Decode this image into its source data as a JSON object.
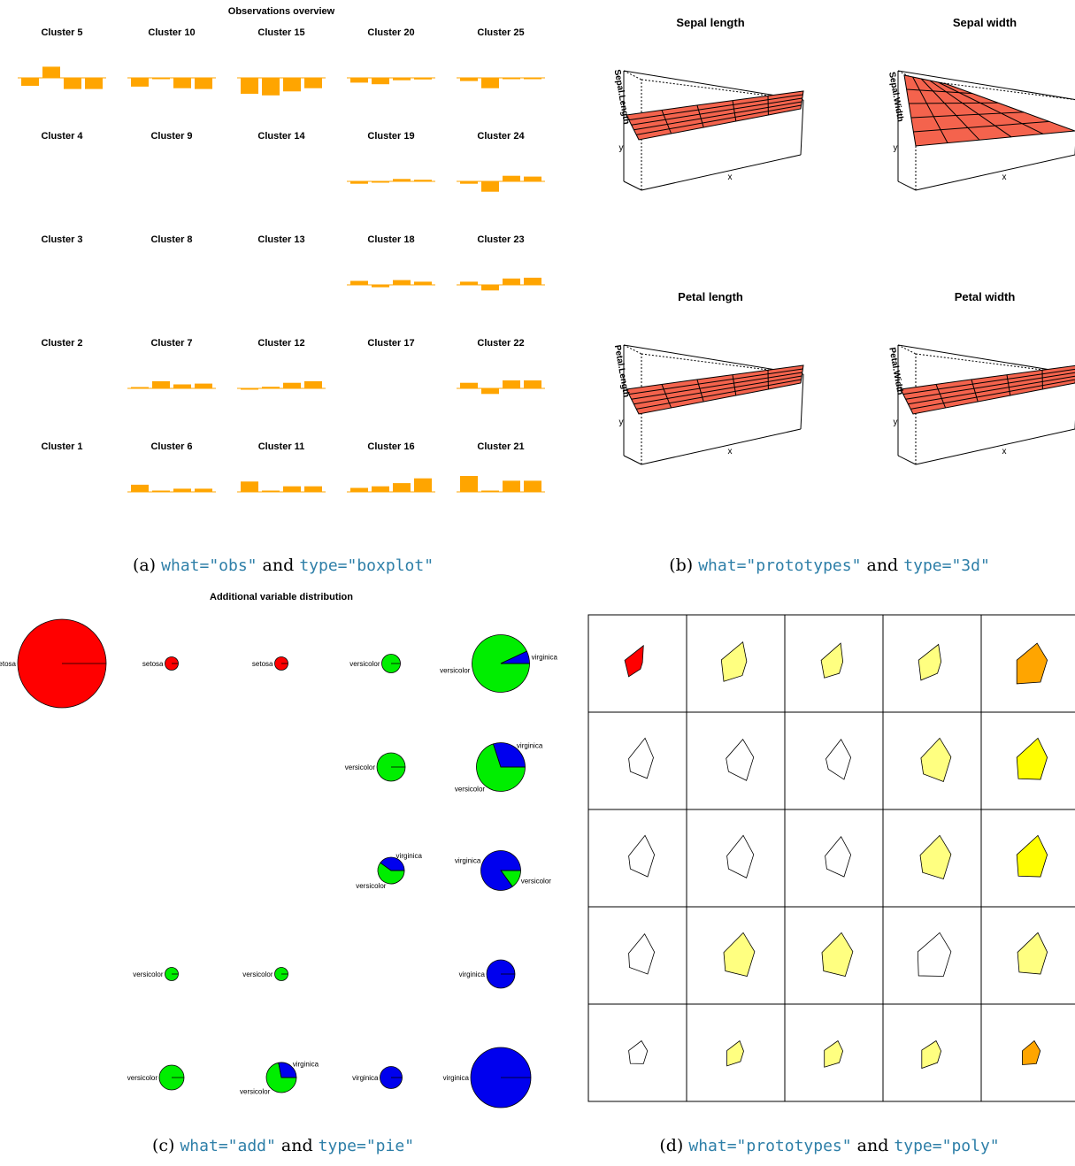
{
  "panel_a": {
    "title": "Observations overview",
    "caption": {
      "prefix": "(a) ",
      "what": "what=\"obs\"",
      "and": " and ",
      "type": "type=\"boxplot\""
    },
    "color": "#ffa500",
    "rows": [
      [
        "Cluster 5",
        "Cluster 10",
        "Cluster 15",
        "Cluster 20",
        "Cluster 25"
      ],
      [
        "Cluster 4",
        "Cluster 9",
        "Cluster 14",
        "Cluster 19",
        "Cluster 24"
      ],
      [
        "Cluster 3",
        "Cluster 8",
        "Cluster 13",
        "Cluster 18",
        "Cluster 23"
      ],
      [
        "Cluster 2",
        "Cluster 7",
        "Cluster 12",
        "Cluster 17",
        "Cluster 22"
      ],
      [
        "Cluster 1",
        "Cluster 6",
        "Cluster 11",
        "Cluster 16",
        "Cluster 21"
      ]
    ]
  },
  "panel_b": {
    "caption": {
      "prefix": "(b) ",
      "what": "what=\"prototypes\"",
      "and": " and ",
      "type": "type=\"3d\""
    },
    "surface_color": "#f4634d",
    "plots": [
      {
        "title": "Sepal length",
        "zlabel": "Sepal.Length",
        "xlabel": "x",
        "ylabel": "y"
      },
      {
        "title": "Sepal width",
        "zlabel": "Sepal.Width",
        "xlabel": "x",
        "ylabel": "y"
      },
      {
        "title": "Petal length",
        "zlabel": "Petal.Length",
        "xlabel": "x",
        "ylabel": "y"
      },
      {
        "title": "Petal width",
        "zlabel": "Petal.Width",
        "xlabel": "x",
        "ylabel": "y"
      }
    ]
  },
  "panel_c": {
    "title": "Additional variable distribution",
    "caption": {
      "prefix": "(c) ",
      "what": "what=\"add\"",
      "and": " and ",
      "type": "type=\"pie\""
    },
    "colors": {
      "setosa": "#ff0000",
      "versicolor": "#00ee00",
      "virginica": "#0000ee"
    }
  },
  "panel_d": {
    "caption": {
      "prefix": "(d) ",
      "what": "what=\"prototypes\"",
      "and": " and ",
      "type": "type=\"poly\""
    },
    "colors": {
      "red": "#ff0000",
      "light_yellow": "#ffff80",
      "yellow": "#ffff00",
      "orange": "#ffa500"
    }
  },
  "chart_data": [
    {
      "type": "bar",
      "title": "Observations overview",
      "grid": [
        [
          "Cluster 5",
          "Cluster 10",
          "Cluster 15",
          "Cluster 20",
          "Cluster 25"
        ],
        [
          "Cluster 4",
          "Cluster 9",
          "Cluster 14",
          "Cluster 19",
          "Cluster 24"
        ],
        [
          "Cluster 3",
          "Cluster 8",
          "Cluster 13",
          "Cluster 18",
          "Cluster 23"
        ],
        [
          "Cluster 2",
          "Cluster 7",
          "Cluster 12",
          "Cluster 17",
          "Cluster 22"
        ],
        [
          "Cluster 1",
          "Cluster 6",
          "Cluster 11",
          "Cluster 16",
          "Cluster 21"
        ]
      ],
      "series": [
        {
          "cluster": "Cluster 5",
          "values": [
            -0.5,
            0.7,
            -0.7,
            -0.7
          ]
        },
        {
          "cluster": "Cluster 10",
          "values": [
            -0.55,
            -0.05,
            -0.65,
            -0.7
          ]
        },
        {
          "cluster": "Cluster 15",
          "values": [
            -1.0,
            -1.1,
            -0.85,
            -0.65
          ]
        },
        {
          "cluster": "Cluster 20",
          "values": [
            -0.3,
            -0.4,
            -0.15,
            -0.1
          ]
        },
        {
          "cluster": "Cluster 25",
          "values": [
            -0.2,
            -0.65,
            -0.05,
            -0.05
          ]
        },
        {
          "cluster": "Cluster 19",
          "values": [
            -0.15,
            -0.05,
            0.15,
            0.1
          ]
        },
        {
          "cluster": "Cluster 24",
          "values": [
            -0.15,
            -0.65,
            0.35,
            0.3
          ]
        },
        {
          "cluster": "Cluster 18",
          "values": [
            0.25,
            -0.15,
            0.3,
            0.2
          ]
        },
        {
          "cluster": "Cluster 23",
          "values": [
            0.2,
            -0.35,
            0.4,
            0.45
          ]
        },
        {
          "cluster": "Cluster 7",
          "values": [
            0.05,
            0.45,
            0.25,
            0.3
          ]
        },
        {
          "cluster": "Cluster 12",
          "values": [
            -0.05,
            0.1,
            0.35,
            0.45
          ]
        },
        {
          "cluster": "Cluster 22",
          "values": [
            0.35,
            -0.35,
            0.5,
            0.5
          ]
        },
        {
          "cluster": "Cluster 6",
          "values": [
            0.45,
            0.05,
            0.2,
            0.2
          ]
        },
        {
          "cluster": "Cluster 11",
          "values": [
            0.65,
            0.05,
            0.35,
            0.35
          ]
        },
        {
          "cluster": "Cluster 16",
          "values": [
            0.25,
            0.35,
            0.55,
            0.85
          ]
        },
        {
          "cluster": "Cluster 21",
          "values": [
            1.0,
            0.05,
            0.7,
            0.7
          ]
        }
      ]
    },
    {
      "type": "surface",
      "plots": [
        "Sepal length",
        "Sepal width",
        "Petal length",
        "Petal width"
      ]
    },
    {
      "type": "pie",
      "title": "Additional variable distribution",
      "pies": [
        {
          "row": 1,
          "col": 1,
          "size": 1.0,
          "slices": [
            {
              "label": "setosa",
              "value": 1.0
            }
          ]
        },
        {
          "row": 1,
          "col": 2,
          "size": 0.15,
          "slices": [
            {
              "label": "setosa",
              "value": 1.0
            }
          ]
        },
        {
          "row": 1,
          "col": 3,
          "size": 0.15,
          "slices": [
            {
              "label": "setosa",
              "value": 1.0
            }
          ]
        },
        {
          "row": 1,
          "col": 4,
          "size": 0.21,
          "slices": [
            {
              "label": "versicolor",
              "value": 1.0
            }
          ]
        },
        {
          "row": 1,
          "col": 5,
          "size": 0.65,
          "slices": [
            {
              "label": "versicolor",
              "value": 0.93
            },
            {
              "label": "virginica",
              "value": 0.07
            }
          ]
        },
        {
          "row": 2,
          "col": 4,
          "size": 0.32,
          "slices": [
            {
              "label": "versicolor",
              "value": 1.0
            }
          ]
        },
        {
          "row": 2,
          "col": 5,
          "size": 0.55,
          "slices": [
            {
              "label": "versicolor",
              "value": 0.7
            },
            {
              "label": "virginica",
              "value": 0.3
            }
          ]
        },
        {
          "row": 3,
          "col": 4,
          "size": 0.3,
          "slices": [
            {
              "label": "versicolor",
              "value": 0.6
            },
            {
              "label": "virginica",
              "value": 0.4
            }
          ]
        },
        {
          "row": 3,
          "col": 5,
          "size": 0.45,
          "slices": [
            {
              "label": "versicolor",
              "value": 0.15
            },
            {
              "label": "virginica",
              "value": 0.85
            }
          ]
        },
        {
          "row": 4,
          "col": 2,
          "size": 0.15,
          "slices": [
            {
              "label": "versicolor",
              "value": 1.0
            }
          ]
        },
        {
          "row": 4,
          "col": 3,
          "size": 0.15,
          "slices": [
            {
              "label": "versicolor",
              "value": 1.0
            }
          ]
        },
        {
          "row": 4,
          "col": 5,
          "size": 0.32,
          "slices": [
            {
              "label": "virginica",
              "value": 1.0
            }
          ]
        },
        {
          "row": 5,
          "col": 2,
          "size": 0.28,
          "slices": [
            {
              "label": "versicolor",
              "value": 1.0
            }
          ]
        },
        {
          "row": 5,
          "col": 3,
          "size": 0.34,
          "slices": [
            {
              "label": "versicolor",
              "value": 0.72
            },
            {
              "label": "virginica",
              "value": 0.28
            }
          ]
        },
        {
          "row": 5,
          "col": 4,
          "size": 0.25,
          "slices": [
            {
              "label": "virginica",
              "value": 1.0
            }
          ]
        },
        {
          "row": 5,
          "col": 5,
          "size": 0.68,
          "slices": [
            {
              "label": "virginica",
              "value": 1.0
            }
          ]
        }
      ]
    },
    {
      "type": "poly",
      "cells": [
        {
          "row": 1,
          "col": 1,
          "fill": "red",
          "values": [
            0.55,
            0.8,
            0.75,
            0.25
          ]
        },
        {
          "row": 1,
          "col": 2,
          "fill": "light_yellow",
          "values": [
            0.75,
            0.9,
            0.9,
            0.55
          ]
        },
        {
          "row": 1,
          "col": 3,
          "fill": "light_yellow",
          "values": [
            0.6,
            0.8,
            0.85,
            0.45
          ]
        },
        {
          "row": 1,
          "col": 4,
          "fill": "light_yellow",
          "values": [
            0.7,
            0.85,
            0.8,
            0.45
          ]
        },
        {
          "row": 1,
          "col": 5,
          "fill": "orange",
          "values": [
            0.85,
            0.85,
            0.85,
            0.85
          ]
        },
        {
          "row": 2,
          "col": 1,
          "fill": "none",
          "values": [
            0.45,
            0.55,
            0.95,
            0.8
          ]
        },
        {
          "row": 2,
          "col": 2,
          "fill": "none",
          "values": [
            0.45,
            0.6,
            0.9,
            0.9
          ]
        },
        {
          "row": 2,
          "col": 3,
          "fill": "none",
          "values": [
            0.35,
            0.5,
            0.9,
            0.85
          ]
        },
        {
          "row": 2,
          "col": 4,
          "fill": "light_yellow",
          "values": [
            0.55,
            0.7,
            0.95,
            0.95
          ]
        },
        {
          "row": 2,
          "col": 5,
          "fill": "yellow",
          "values": [
            0.75,
            0.85,
            0.95,
            0.85
          ]
        },
        {
          "row": 3,
          "col": 1,
          "fill": "none",
          "values": [
            0.45,
            0.55,
            0.95,
            0.85
          ]
        },
        {
          "row": 3,
          "col": 2,
          "fill": "none",
          "values": [
            0.45,
            0.55,
            0.95,
            0.9
          ]
        },
        {
          "row": 3,
          "col": 3,
          "fill": "none",
          "values": [
            0.45,
            0.55,
            0.9,
            0.85
          ]
        },
        {
          "row": 3,
          "col": 4,
          "fill": "light_yellow",
          "values": [
            0.6,
            0.75,
            0.95,
            0.95
          ]
        },
        {
          "row": 3,
          "col": 5,
          "fill": "yellow",
          "values": [
            0.75,
            0.85,
            0.95,
            0.85
          ]
        },
        {
          "row": 4,
          "col": 1,
          "fill": "none",
          "values": [
            0.5,
            0.55,
            0.9,
            0.85
          ]
        },
        {
          "row": 4,
          "col": 2,
          "fill": "light_yellow",
          "values": [
            0.65,
            0.75,
            0.95,
            0.95
          ]
        },
        {
          "row": 4,
          "col": 3,
          "fill": "light_yellow",
          "values": [
            0.65,
            0.75,
            0.95,
            0.95
          ]
        },
        {
          "row": 4,
          "col": 4,
          "fill": "none",
          "values": [
            0.85,
            0.9,
            0.95,
            0.95
          ]
        },
        {
          "row": 4,
          "col": 5,
          "fill": "light_yellow",
          "values": [
            0.7,
            0.8,
            0.95,
            0.85
          ]
        },
        {
          "row": 5,
          "col": 1,
          "fill": "none",
          "values": [
            0.45,
            0.55,
            0.5,
            0.5
          ]
        },
        {
          "row": 5,
          "col": 2,
          "fill": "light_yellow",
          "values": [
            0.55,
            0.55,
            0.5,
            0.4
          ]
        },
        {
          "row": 5,
          "col": 3,
          "fill": "light_yellow",
          "values": [
            0.6,
            0.6,
            0.5,
            0.45
          ]
        },
        {
          "row": 5,
          "col": 4,
          "fill": "light_yellow",
          "values": [
            0.65,
            0.65,
            0.5,
            0.45
          ]
        },
        {
          "row": 5,
          "col": 5,
          "fill": "orange",
          "values": [
            0.5,
            0.5,
            0.5,
            0.5
          ]
        }
      ]
    }
  ]
}
